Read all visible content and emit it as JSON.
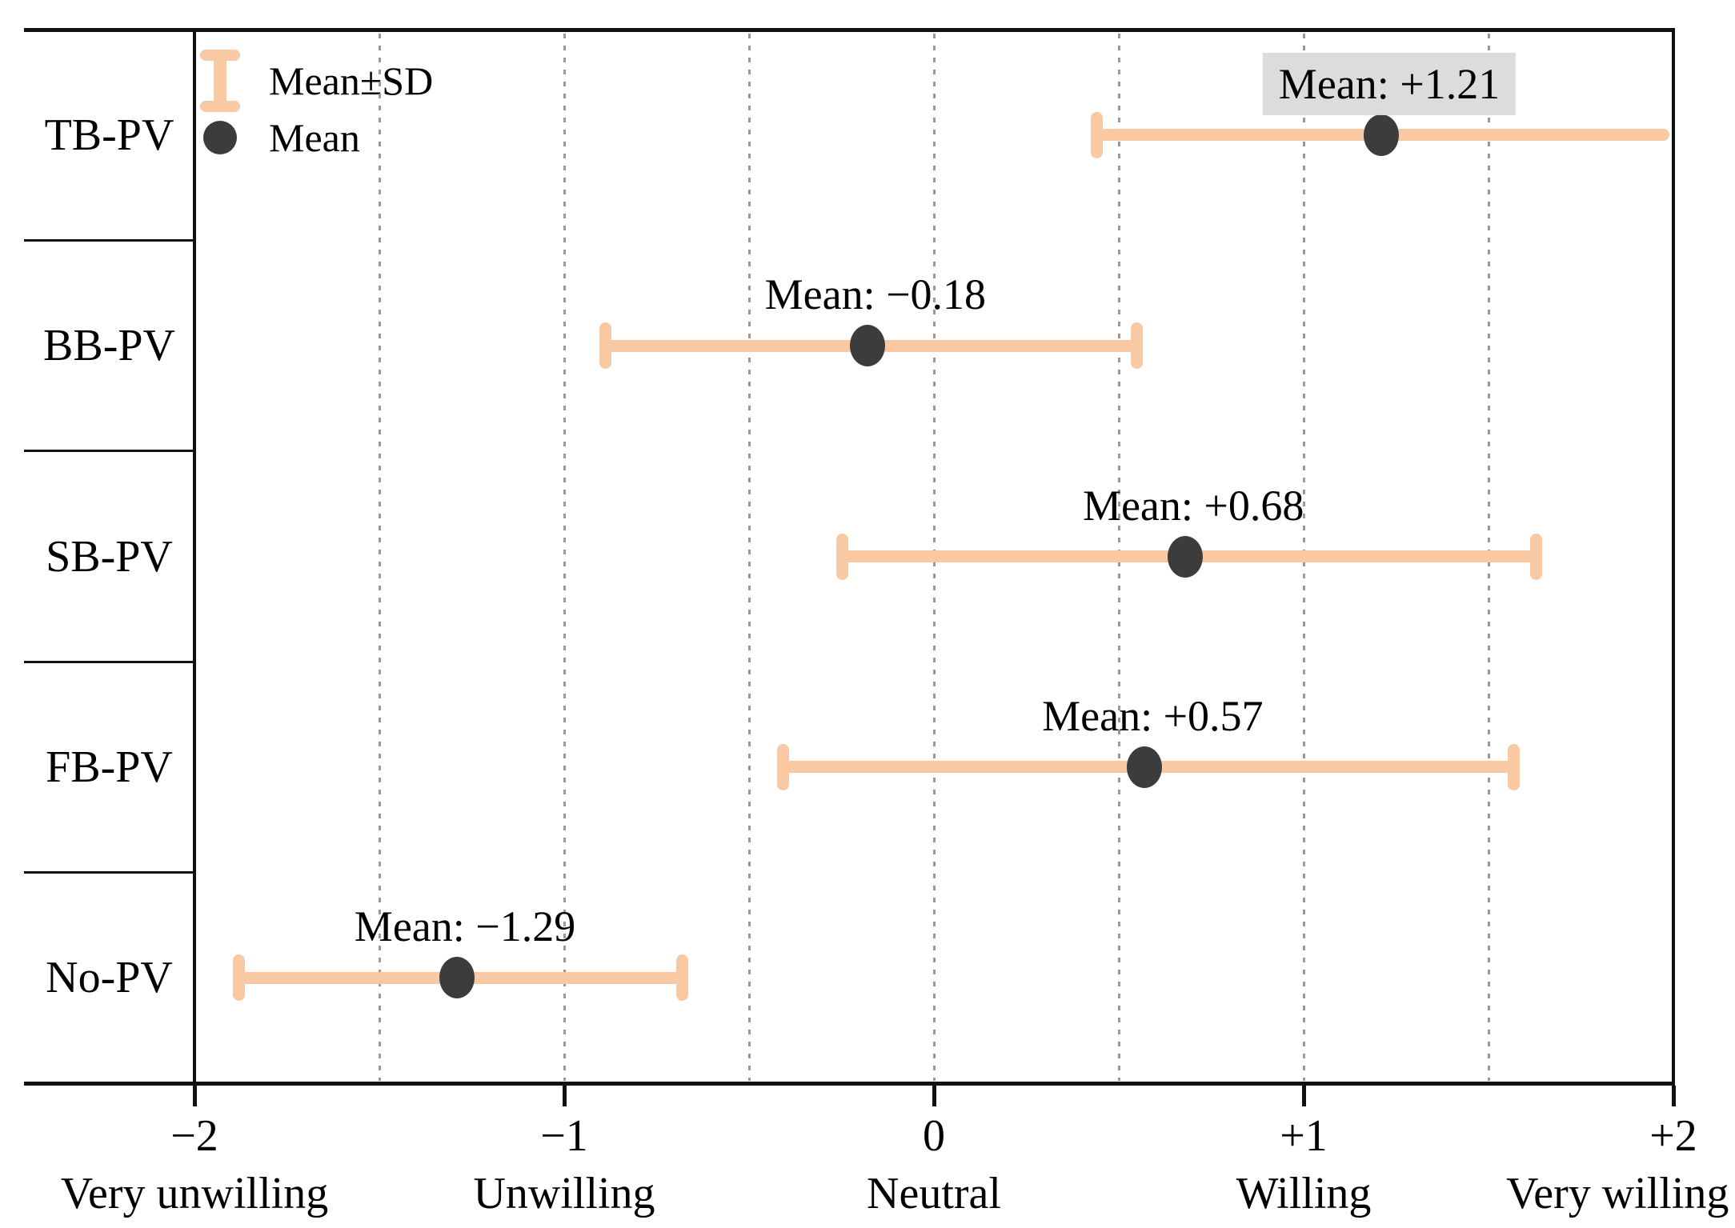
{
  "figure": {
    "description": "Horizontal Mean ± SD error-bar chart of stated willingness for five PV configurations"
  },
  "legend": {
    "items": [
      {
        "icon": "errorbar-icon",
        "label": "Mean±SD"
      },
      {
        "icon": "mean-dot-icon",
        "label": "Mean"
      }
    ]
  },
  "chart_data": {
    "type": "scatter",
    "variant": "horizontal-errorbar",
    "title": "",
    "xlabel": "",
    "ylabel": "",
    "categories": [
      "TB-PV",
      "BB-PV",
      "SB-PV",
      "FB-PV",
      "No-PV"
    ],
    "series": [
      {
        "name": "Mean",
        "values": [
          1.21,
          -0.18,
          0.68,
          0.57,
          -1.29
        ]
      },
      {
        "name": "SD",
        "values": [
          0.77,
          0.72,
          0.94,
          0.99,
          0.6
        ]
      }
    ],
    "error_low": [
      0.44,
      -0.89,
      -0.25,
      -0.41,
      -1.88
    ],
    "error_high": [
      1.99,
      0.55,
      1.63,
      1.57,
      -0.68
    ],
    "right_cap_visible": [
      false,
      true,
      true,
      true,
      true
    ],
    "annotations": [
      {
        "text": "Mean: +1.21",
        "highlighted": true
      },
      {
        "text": "Mean: −0.18",
        "highlighted": false
      },
      {
        "text": "Mean: +0.68",
        "highlighted": false
      },
      {
        "text": "Mean: +0.57",
        "highlighted": false
      },
      {
        "text": "Mean: −1.29",
        "highlighted": false
      }
    ],
    "xlim": [
      -2,
      2
    ],
    "xticks": [
      {
        "value": -2,
        "label": "−2",
        "sublabel": "Very unwilling"
      },
      {
        "value": -1,
        "label": "−1",
        "sublabel": "Unwilling"
      },
      {
        "value": 0,
        "label": "0",
        "sublabel": "Neutral"
      },
      {
        "value": 1,
        "label": "+1",
        "sublabel": "Willing"
      },
      {
        "value": 2,
        "label": "+2",
        "sublabel": "Very willing"
      }
    ],
    "gridlines": [
      -1.5,
      -1,
      -0.5,
      0,
      0.5,
      1,
      1.5
    ],
    "grid_style": "dotted",
    "legend_position": "top-left",
    "legend_entries": [
      "Mean±SD",
      "Mean"
    ]
  },
  "colors": {
    "errorbar": "#F9C9A3",
    "mean_dot": "#3C3C3C",
    "annotation_highlight_bg": "#DCDCDC",
    "gridline": "#999999",
    "axis": "#111111",
    "text": "#000000",
    "background": "#FFFFFF"
  }
}
